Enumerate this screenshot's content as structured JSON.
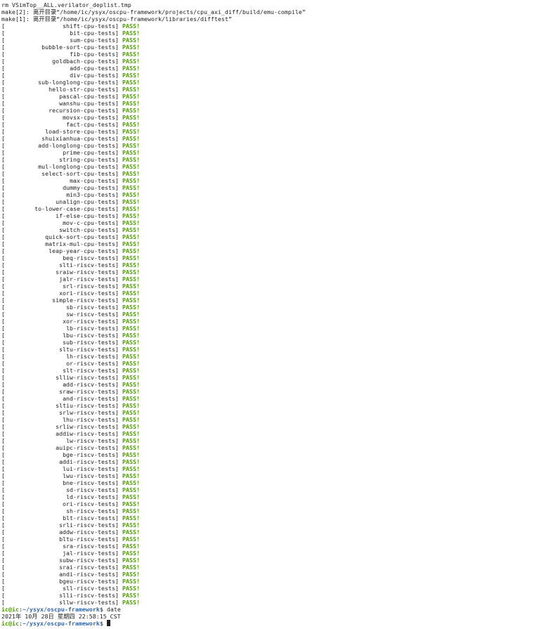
{
  "colors": {
    "background": "#ffffff",
    "text": "#222222",
    "pass": "#4e9a06",
    "prompt_user": "#4e9a06",
    "prompt_path": "#3465a4"
  },
  "header_lines": [
    "rm VSimTop__ALL.verilator_deplist.tmp",
    "make[2]: 离开目录“/home/ic/ysyx/oscpu-framework/projects/cpu_axi_diff/build/emu-compile”",
    "make[1]: 离开目录“/home/ic/ysyx/oscpu-framework/libraries/difftest”"
  ],
  "bracket_open": "[",
  "bracket_close": "]",
  "pass_label": "PASS!",
  "tests": [
    "shift-cpu-tests",
    "bit-cpu-tests",
    "sum-cpu-tests",
    "bubble-sort-cpu-tests",
    "fib-cpu-tests",
    "goldbach-cpu-tests",
    "add-cpu-tests",
    "div-cpu-tests",
    "sub-longlong-cpu-tests",
    "hello-str-cpu-tests",
    "pascal-cpu-tests",
    "wanshu-cpu-tests",
    "recursion-cpu-tests",
    "movsx-cpu-tests",
    "fact-cpu-tests",
    "load-store-cpu-tests",
    "shuixianhua-cpu-tests",
    "add-longlong-cpu-tests",
    "prime-cpu-tests",
    "string-cpu-tests",
    "mul-longlong-cpu-tests",
    "select-sort-cpu-tests",
    "max-cpu-tests",
    "dummy-cpu-tests",
    "min3-cpu-tests",
    "unalign-cpu-tests",
    "to-lower-case-cpu-tests",
    "if-else-cpu-tests",
    "mov-c-cpu-tests",
    "switch-cpu-tests",
    "quick-sort-cpu-tests",
    "matrix-mul-cpu-tests",
    "leap-year-cpu-tests",
    "beq-riscv-tests",
    "slti-riscv-tests",
    "sraiw-riscv-tests",
    "jalr-riscv-tests",
    "srl-riscv-tests",
    "xori-riscv-tests",
    "simple-riscv-tests",
    "sb-riscv-tests",
    "sw-riscv-tests",
    "xor-riscv-tests",
    "lb-riscv-tests",
    "lbu-riscv-tests",
    "sub-riscv-tests",
    "sltu-riscv-tests",
    "lh-riscv-tests",
    "or-riscv-tests",
    "slt-riscv-tests",
    "slliw-riscv-tests",
    "add-riscv-tests",
    "sraw-riscv-tests",
    "and-riscv-tests",
    "sltiu-riscv-tests",
    "srlw-riscv-tests",
    "lhu-riscv-tests",
    "srliw-riscv-tests",
    "addiw-riscv-tests",
    "lw-riscv-tests",
    "auipc-riscv-tests",
    "bge-riscv-tests",
    "addi-riscv-tests",
    "lui-riscv-tests",
    "lwu-riscv-tests",
    "bne-riscv-tests",
    "sd-riscv-tests",
    "ld-riscv-tests",
    "ori-riscv-tests",
    "sh-riscv-tests",
    "blt-riscv-tests",
    "srli-riscv-tests",
    "addw-riscv-tests",
    "bltu-riscv-tests",
    "sra-riscv-tests",
    "jal-riscv-tests",
    "subw-riscv-tests",
    "srai-riscv-tests",
    "andi-riscv-tests",
    "bgeu-riscv-tests",
    "sll-riscv-tests",
    "slli-riscv-tests",
    "sllw-riscv-tests"
  ],
  "prompt": {
    "user_host": "ic@ic",
    "separator": ":",
    "path": "~/ysyx/oscpu-framework",
    "symbol": "$ "
  },
  "command": "date",
  "date_output": "2021年 10月 28日 星期四 22:58:15 CST"
}
